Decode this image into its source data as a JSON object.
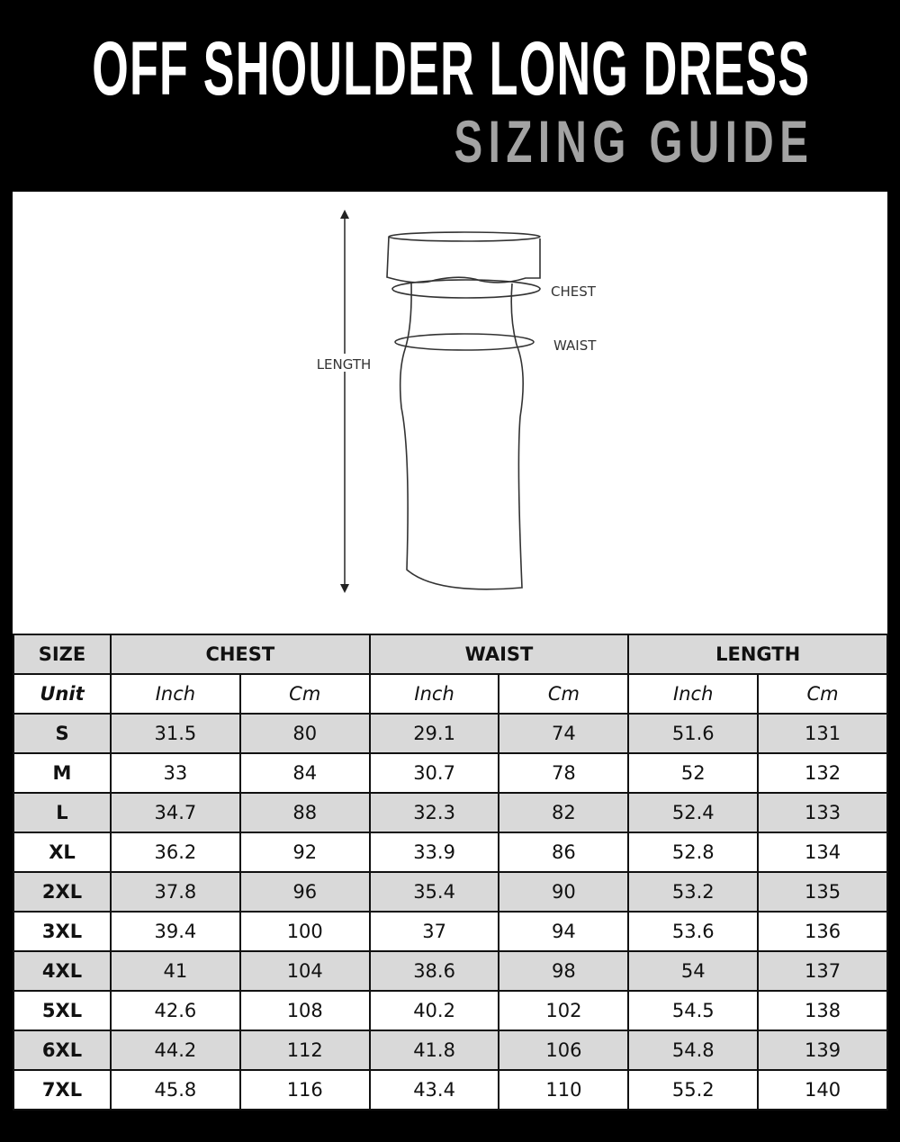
{
  "header": {
    "title": "OFF SHOULDER LONG DRESS",
    "subtitle": "SIZING GUIDE"
  },
  "diagram": {
    "length_label": "LENGTH",
    "chest_label": "CHEST",
    "waist_label": "WAIST"
  },
  "table": {
    "size_header": "SIZE",
    "groups": [
      "CHEST",
      "WAIST",
      "LENGTH"
    ],
    "unit_label": "Unit",
    "units": [
      "Inch",
      "Cm",
      "Inch",
      "Cm",
      "Inch",
      "Cm"
    ],
    "rows": [
      [
        "S",
        "31.5",
        "80",
        "29.1",
        "74",
        "51.6",
        "131"
      ],
      [
        "M",
        "33",
        "84",
        "30.7",
        "78",
        "52",
        "132"
      ],
      [
        "L",
        "34.7",
        "88",
        "32.3",
        "82",
        "52.4",
        "133"
      ],
      [
        "XL",
        "36.2",
        "92",
        "33.9",
        "86",
        "52.8",
        "134"
      ],
      [
        "2XL",
        "37.8",
        "96",
        "35.4",
        "90",
        "53.2",
        "135"
      ],
      [
        "3XL",
        "39.4",
        "100",
        "37",
        "94",
        "53.6",
        "136"
      ],
      [
        "4XL",
        "41",
        "104",
        "38.6",
        "98",
        "54",
        "137"
      ],
      [
        "5XL",
        "42.6",
        "108",
        "40.2",
        "102",
        "54.5",
        "138"
      ],
      [
        "6XL",
        "44.2",
        "112",
        "41.8",
        "106",
        "54.8",
        "139"
      ],
      [
        "7XL",
        "45.8",
        "116",
        "43.4",
        "110",
        "55.2",
        "140"
      ]
    ]
  },
  "colors": {
    "background": "#000000",
    "header_row": "#d9d9d9",
    "subtitle": "#a3a3a3"
  }
}
